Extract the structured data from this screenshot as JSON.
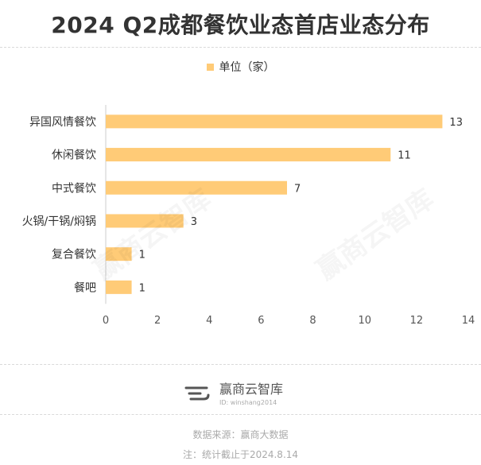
{
  "title": "2024 Q2成都餐饮业态首店业态分布",
  "legend": {
    "label": "单位（家）"
  },
  "colors": {
    "bar": "#ffcb77",
    "text": "#333333",
    "grid": "#e5e5e5"
  },
  "chart_data": {
    "type": "bar",
    "orientation": "horizontal",
    "categories": [
      "异国风情餐饮",
      "休闲餐饮",
      "中式餐饮",
      "火锅/干锅/焖锅",
      "复合餐饮",
      "餐吧"
    ],
    "series": [
      {
        "name": "单位（家）",
        "values": [
          13,
          11,
          7,
          3,
          1,
          1
        ]
      }
    ],
    "xlim": [
      0,
      14
    ],
    "xticks": [
      0,
      2,
      4,
      6,
      8,
      10,
      12,
      14
    ],
    "grid": false,
    "legend_position": "top-center",
    "data_labels": true
  },
  "watermark": "赢商云智库",
  "logo": {
    "name": "赢商云智库",
    "id_text": "ID: winshang2014",
    "icon": "winshang-logo-icon"
  },
  "footer": {
    "source": "数据来源：赢商大数据",
    "note": "注：统计截止于2024.8.14"
  }
}
